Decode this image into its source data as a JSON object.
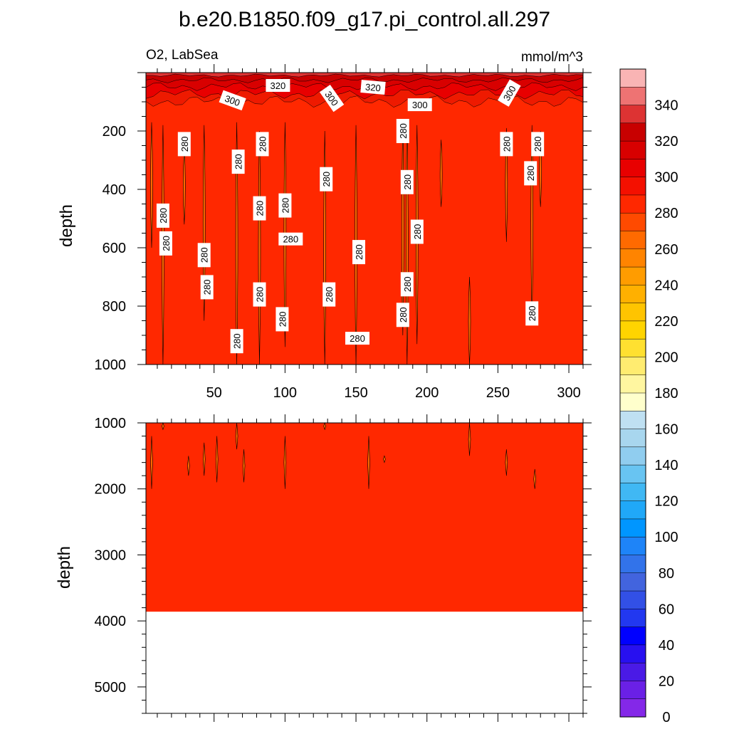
{
  "title": "b.e20.B1850.f09_g17.pi_control.all.297",
  "left_subtitle": "O2, LabSea",
  "right_subtitle": "mmol/m^3",
  "chart_data": [
    {
      "type": "heatmap",
      "name": "upper panel",
      "xlim": [
        2,
        310
      ],
      "ylim": [
        0,
        1000
      ],
      "y_reversed": true,
      "x_ticks": [
        "50",
        "100",
        "150",
        "200",
        "250",
        "300"
      ],
      "y_ticks": [
        "200",
        "400",
        "600",
        "800",
        "1000"
      ],
      "ylabel": "depth",
      "surface_layer": {
        "depth_range": [
          0,
          130
        ],
        "values_range": [
          280,
          330
        ]
      },
      "fill_value": 285,
      "contour_labels": [
        {
          "x": 63,
          "y": 95,
          "text": "300",
          "angle": 20
        },
        {
          "x": 95,
          "y": 44,
          "text": "320",
          "angle": 0
        },
        {
          "x": 133,
          "y": 88,
          "text": "300",
          "angle": 55
        },
        {
          "x": 162,
          "y": 50,
          "text": "320",
          "angle": 5
        },
        {
          "x": 195,
          "y": 110,
          "text": "300",
          "angle": 0
        },
        {
          "x": 258,
          "y": 70,
          "text": "300",
          "angle": -60
        },
        {
          "x": 29,
          "y": 245,
          "text": "280",
          "angle": -90
        },
        {
          "x": 14,
          "y": 490,
          "text": "280",
          "angle": -90
        },
        {
          "x": 16,
          "y": 585,
          "text": "280",
          "angle": -90
        },
        {
          "x": 43,
          "y": 625,
          "text": "280",
          "angle": -90
        },
        {
          "x": 45,
          "y": 735,
          "text": "280",
          "angle": -90
        },
        {
          "x": 67,
          "y": 305,
          "text": "280",
          "angle": -90
        },
        {
          "x": 84,
          "y": 245,
          "text": "280",
          "angle": -90
        },
        {
          "x": 82,
          "y": 465,
          "text": "280",
          "angle": -90
        },
        {
          "x": 82,
          "y": 760,
          "text": "280",
          "angle": -90
        },
        {
          "x": 100,
          "y": 455,
          "text": "280",
          "angle": -90
        },
        {
          "x": 104,
          "y": 570,
          "text": "280",
          "angle": 0
        },
        {
          "x": 98,
          "y": 845,
          "text": "280",
          "angle": -90
        },
        {
          "x": 66,
          "y": 920,
          "text": "280",
          "angle": -90
        },
        {
          "x": 129,
          "y": 365,
          "text": "280",
          "angle": -90
        },
        {
          "x": 131,
          "y": 760,
          "text": "280",
          "angle": -90
        },
        {
          "x": 152,
          "y": 615,
          "text": "280",
          "angle": -90
        },
        {
          "x": 151,
          "y": 910,
          "text": "280",
          "angle": 0
        },
        {
          "x": 183,
          "y": 200,
          "text": "280",
          "angle": -90
        },
        {
          "x": 186,
          "y": 375,
          "text": "280",
          "angle": -90
        },
        {
          "x": 193,
          "y": 545,
          "text": "280",
          "angle": -90
        },
        {
          "x": 186,
          "y": 725,
          "text": "280",
          "angle": -90
        },
        {
          "x": 183,
          "y": 830,
          "text": "280",
          "angle": -90
        },
        {
          "x": 256,
          "y": 245,
          "text": "280",
          "angle": -90
        },
        {
          "x": 278,
          "y": 245,
          "text": "280",
          "angle": -90
        },
        {
          "x": 273,
          "y": 345,
          "text": "280",
          "angle": -90
        },
        {
          "x": 274,
          "y": 825,
          "text": "280",
          "angle": -90
        }
      ]
    },
    {
      "type": "heatmap",
      "name": "lower panel",
      "xlim": [
        2,
        310
      ],
      "ylim": [
        1000,
        5400
      ],
      "y_reversed": true,
      "y_ticks": [
        "1000",
        "2000",
        "3000",
        "4000",
        "5000"
      ],
      "ylabel": "depth",
      "fill_value": 285,
      "bottom_depth": 3860
    }
  ],
  "colorbar": {
    "labels": [
      "340",
      "320",
      "300",
      "280",
      "260",
      "240",
      "220",
      "200",
      "180",
      "160",
      "140",
      "120",
      "100",
      "80",
      "60",
      "40",
      "20",
      "0"
    ],
    "colors": [
      "#f9b4b4",
      "#ee7373",
      "#dd3333",
      "#c80000",
      "#d80000",
      "#e80000",
      "#f41000",
      "#ff2800",
      "#ff4a00",
      "#ff6a00",
      "#ff8400",
      "#ff9c00",
      "#ffb000",
      "#ffc400",
      "#ffd400",
      "#ffe030",
      "#ffec70",
      "#fff6a0",
      "#ffffcc",
      "#bfe0f2",
      "#a8d6ee",
      "#90cdef",
      "#68c4f2",
      "#40b8f4",
      "#20a8f8",
      "#0096ff",
      "#1e84f8",
      "#3273ea",
      "#4264de",
      "#3250e6",
      "#2238f0",
      "#0000ff",
      "#2810f0",
      "#4a1ae6",
      "#6a20e6",
      "#8428e8"
    ]
  }
}
